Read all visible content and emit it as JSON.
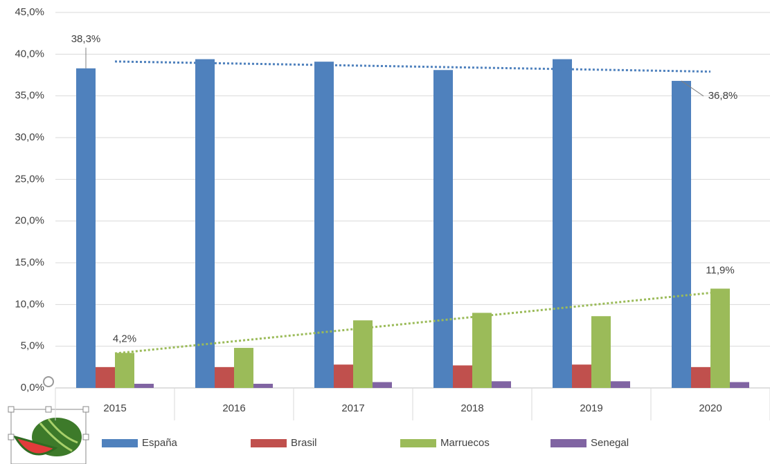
{
  "chart_data": {
    "type": "bar",
    "categories": [
      "2015",
      "2016",
      "2017",
      "2018",
      "2019",
      "2020"
    ],
    "series": [
      {
        "name": "España",
        "color": "#4f81bd",
        "values": [
          38.3,
          39.4,
          39.1,
          38.1,
          39.4,
          36.8
        ],
        "value_labels": [
          "38,3%",
          null,
          null,
          null,
          null,
          "36,8%"
        ],
        "trendline": "linear"
      },
      {
        "name": "Brasil",
        "color": "#c0504d",
        "values": [
          2.5,
          2.5,
          2.8,
          2.7,
          2.8,
          2.5
        ]
      },
      {
        "name": "Marruecos",
        "color": "#9bbb59",
        "values": [
          4.2,
          4.8,
          8.1,
          9.0,
          8.6,
          11.9
        ],
        "value_labels": [
          "4,2%",
          null,
          null,
          null,
          null,
          "11,9%"
        ],
        "trendline": "linear"
      },
      {
        "name": "Senegal",
        "color": "#8064a2",
        "values": [
          0.5,
          0.5,
          0.7,
          0.8,
          0.8,
          0.7
        ]
      }
    ],
    "ylim": [
      0,
      45
    ],
    "yticks": [
      {
        "value": 0,
        "label": "0,0%"
      },
      {
        "value": 5,
        "label": "5,0%"
      },
      {
        "value": 10,
        "label": "10,0%"
      },
      {
        "value": 15,
        "label": "15,0%"
      },
      {
        "value": 20,
        "label": "20,0%"
      },
      {
        "value": 25,
        "label": "25,0%"
      },
      {
        "value": 30,
        "label": "30,0%"
      },
      {
        "value": 35,
        "label": "35,0%"
      },
      {
        "value": 40,
        "label": "40,0%"
      },
      {
        "value": 45,
        "label": "45,0%"
      }
    ],
    "grid": true,
    "legend": "bottom"
  }
}
